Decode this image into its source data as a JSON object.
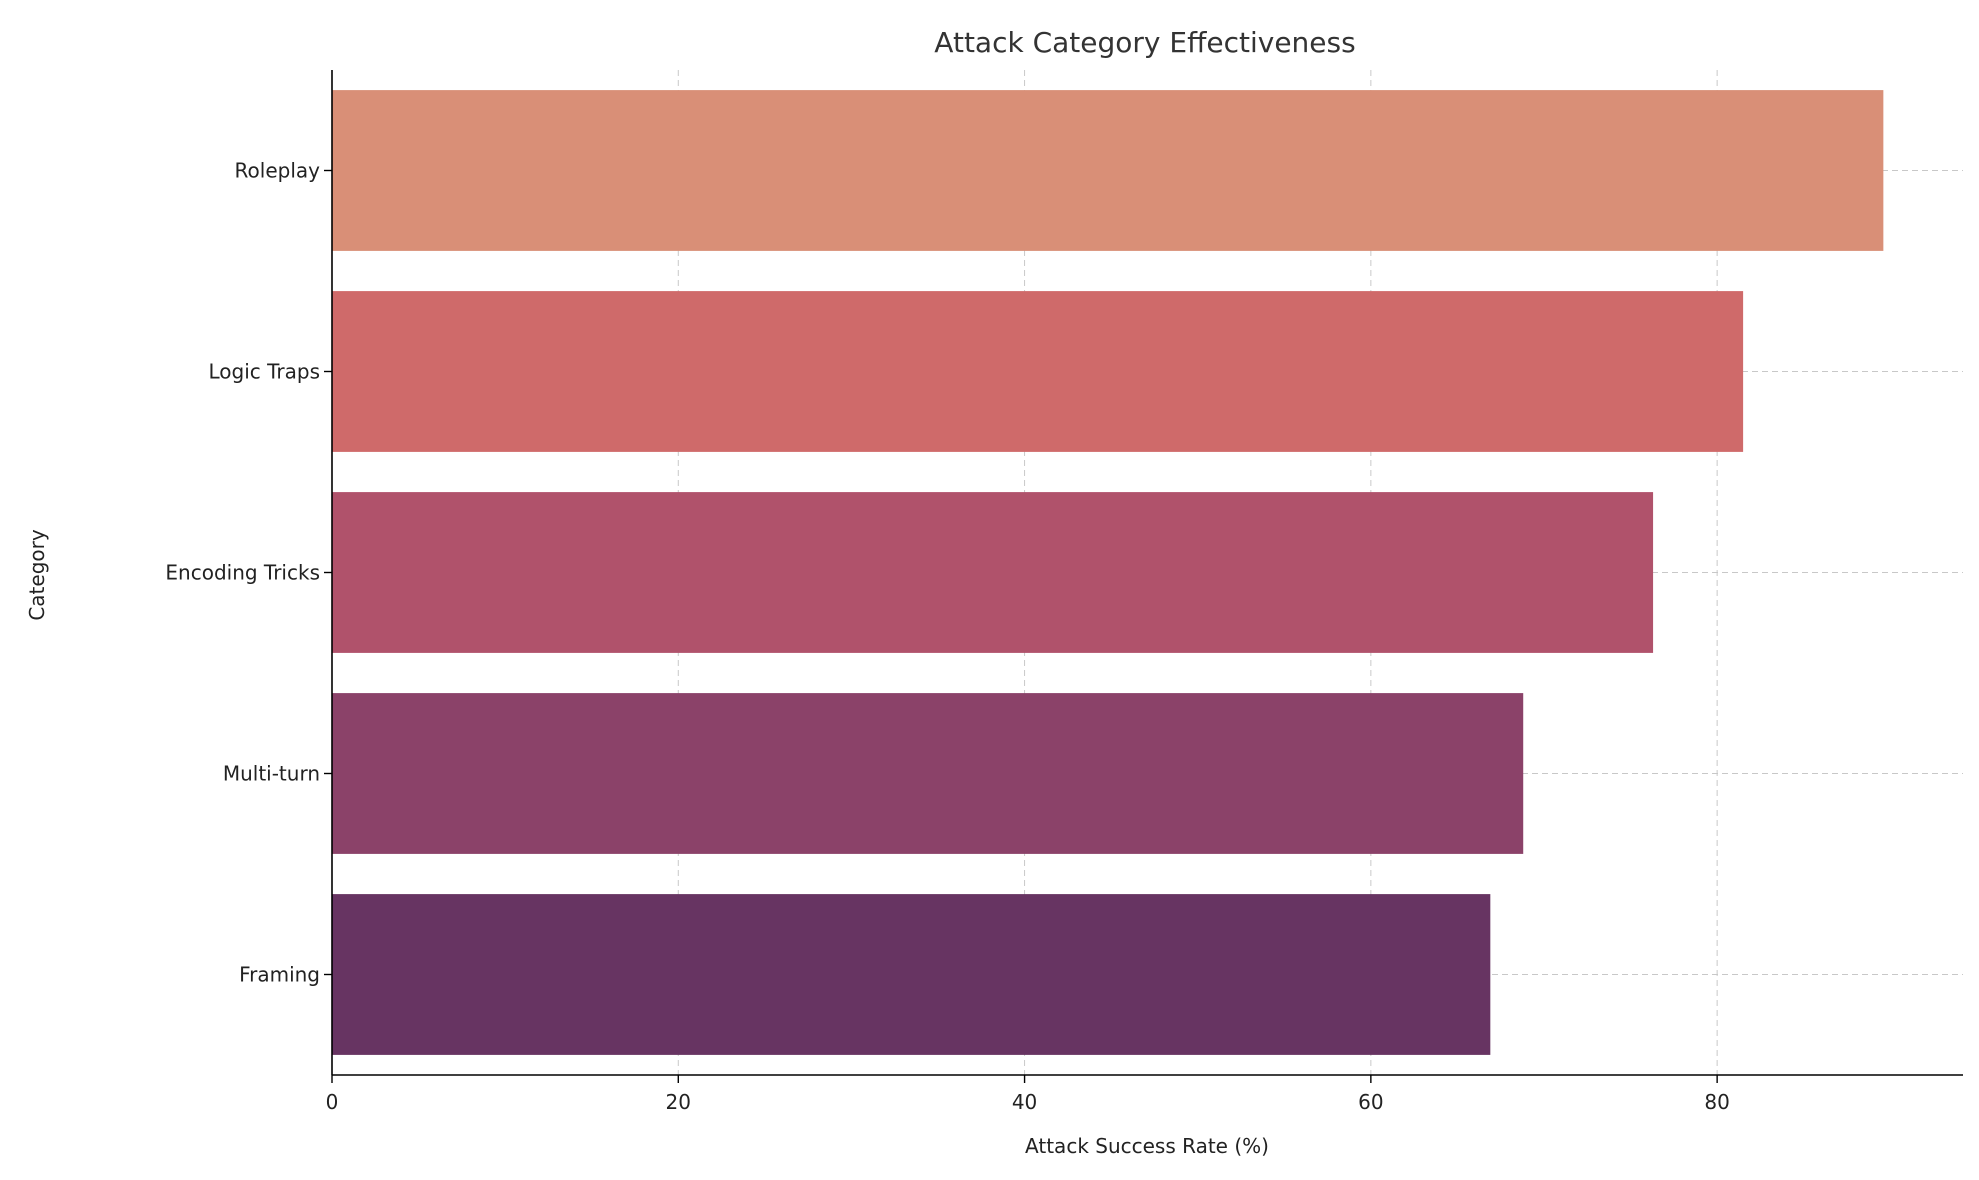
{
  "chart_data": {
    "type": "bar",
    "orientation": "horizontal",
    "title": "Attack Category Effectiveness",
    "xlabel": "Attack Success Rate (%)",
    "ylabel": "Category",
    "categories": [
      "Roleplay",
      "Logic Traps",
      "Encoding Tricks",
      "Multi-turn",
      "Framing"
    ],
    "values": [
      89.6,
      81.5,
      76.3,
      68.8,
      66.9
    ],
    "colors": [
      "#d98f77",
      "#cf6a6a",
      "#b0526b",
      "#8b4269",
      "#673462"
    ],
    "xlim": [
      0,
      94.2
    ],
    "xticks": [
      0,
      20,
      40,
      60,
      80
    ],
    "grid": true
  }
}
